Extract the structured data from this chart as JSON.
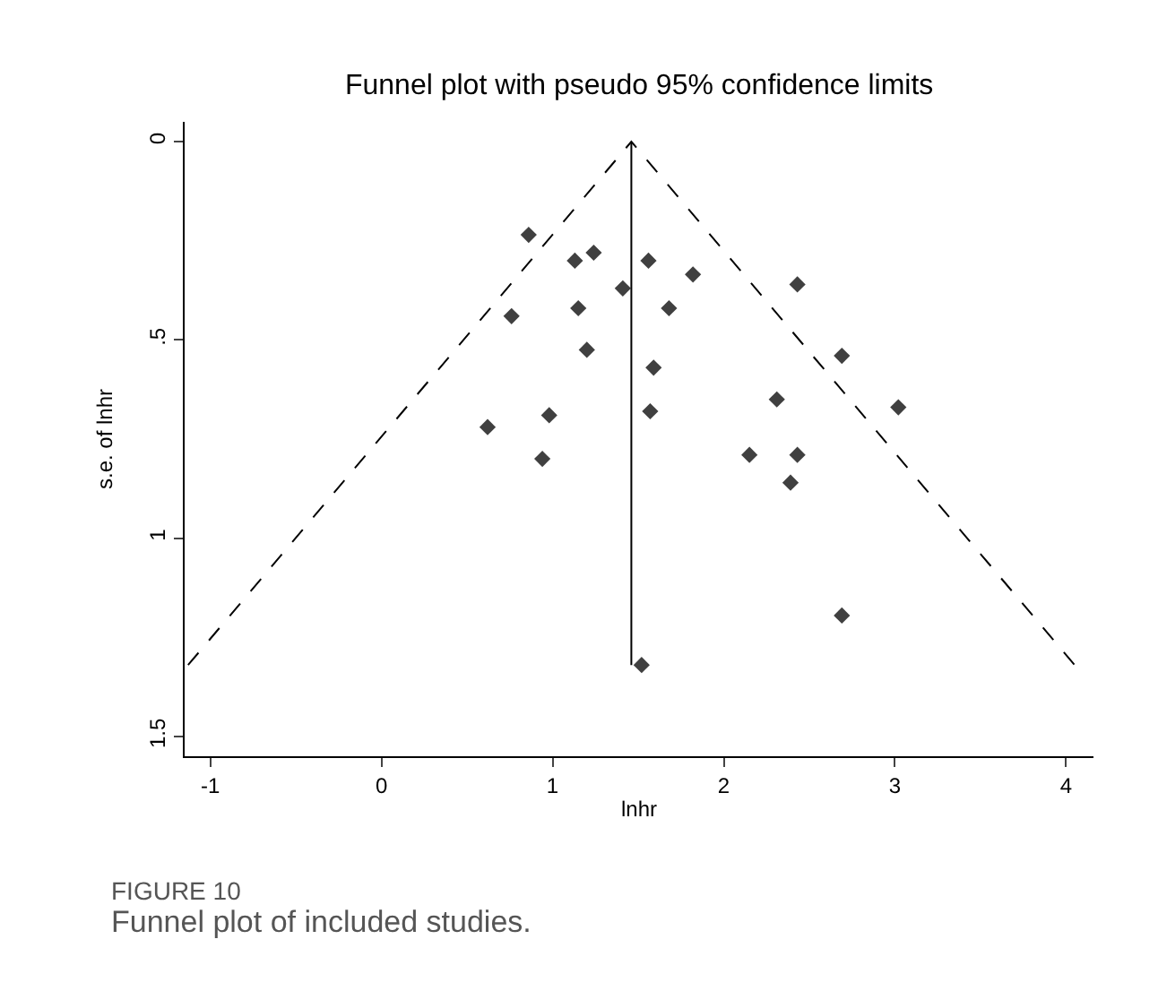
{
  "chart_data": {
    "type": "scatter",
    "title": "Funnel plot with pseudo 95% confidence limits",
    "xlabel": "lnhr",
    "ylabel": "s.e. of lnhr",
    "x": [
      0.86,
      1.13,
      1.24,
      1.56,
      1.41,
      1.82,
      1.68,
      1.15,
      0.76,
      1.2,
      2.43,
      1.59,
      2.69,
      2.31,
      3.02,
      1.57,
      0.98,
      0.62,
      2.15,
      2.43,
      0.94,
      2.39,
      2.69,
      1.52
    ],
    "series": [
      {
        "color": "#404040",
        "marker": "diamond",
        "values": [
          0.235,
          0.3,
          0.28,
          0.3,
          0.37,
          0.335,
          0.42,
          0.42,
          0.44,
          0.525,
          0.36,
          0.57,
          0.54,
          0.65,
          0.67,
          0.68,
          0.69,
          0.72,
          0.79,
          0.79,
          0.8,
          0.86,
          1.195,
          1.32
        ]
      },
      {
        "type": "line",
        "marker": "none",
        "color": "#000000",
        "line_style": "solid",
        "x": [
          1.46,
          1.46
        ],
        "values": [
          0,
          1.32
        ]
      },
      {
        "type": "line",
        "marker": "none",
        "color": "#000000",
        "line_style": "dashed",
        "x": [
          -1.13,
          1.46,
          4.05
        ],
        "values": [
          1.32,
          0,
          1.32
        ]
      }
    ],
    "xlim": [
      -1.15,
      4.16
    ],
    "xticks": [
      -1,
      0,
      1,
      2,
      3,
      4
    ],
    "ylim": [
      1.55,
      -0.05
    ],
    "yticks": [
      0,
      {
        "value": 0.5,
        "label": ".5"
      },
      1,
      1.5
    ],
    "annotations": [
      "FIGURE 10",
      "Funnel plot of included studies."
    ]
  }
}
